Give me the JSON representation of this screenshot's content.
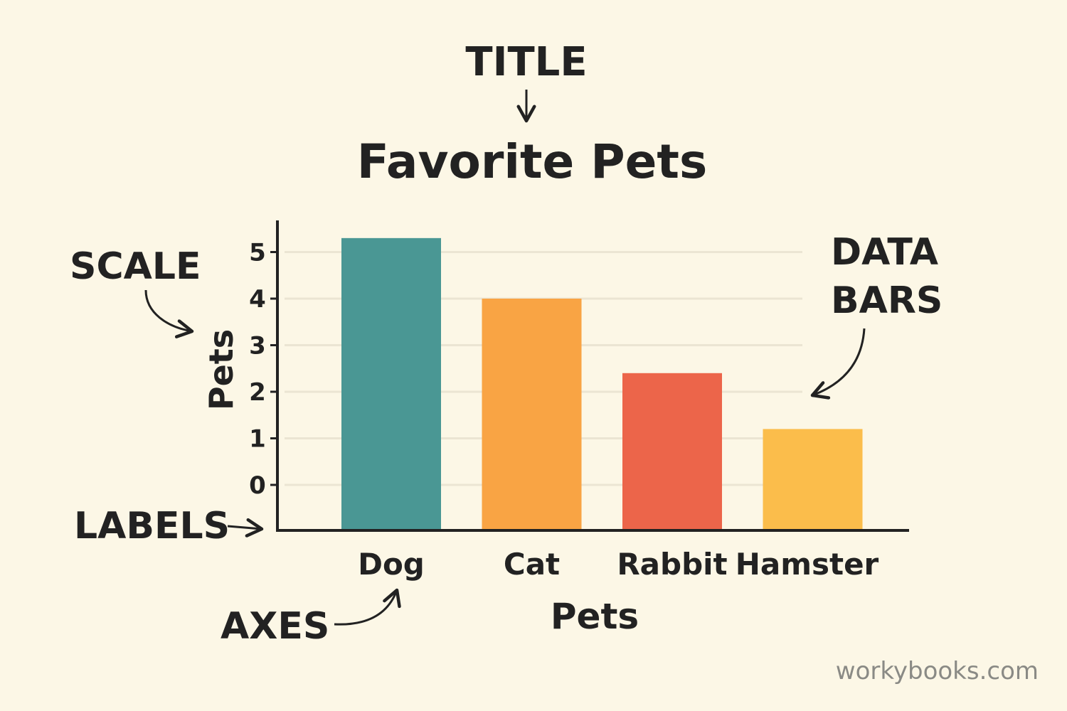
{
  "annotations": {
    "title_label": "TITLE",
    "scale_label": "SCALE",
    "labels_label": "LABELS",
    "axes_label": "AXES",
    "data_bars_line1": "DATA",
    "data_bars_line2": "BARS"
  },
  "watermark": "workybooks.com",
  "chart_data": {
    "type": "bar",
    "title": "Favorite Pets",
    "xlabel": "Pets",
    "ylabel": "Pets",
    "categories": [
      "Dog",
      "Cat",
      "Rabbit",
      "Hamster"
    ],
    "values": [
      5.3,
      4.0,
      2.4,
      1.2
    ],
    "colors": [
      "#4a9794",
      "#f9a444",
      "#ec654a",
      "#fbbd4b"
    ],
    "yticks": [
      0,
      1,
      2,
      3,
      4,
      5
    ],
    "ylim": [
      0,
      5
    ],
    "grid": true
  }
}
